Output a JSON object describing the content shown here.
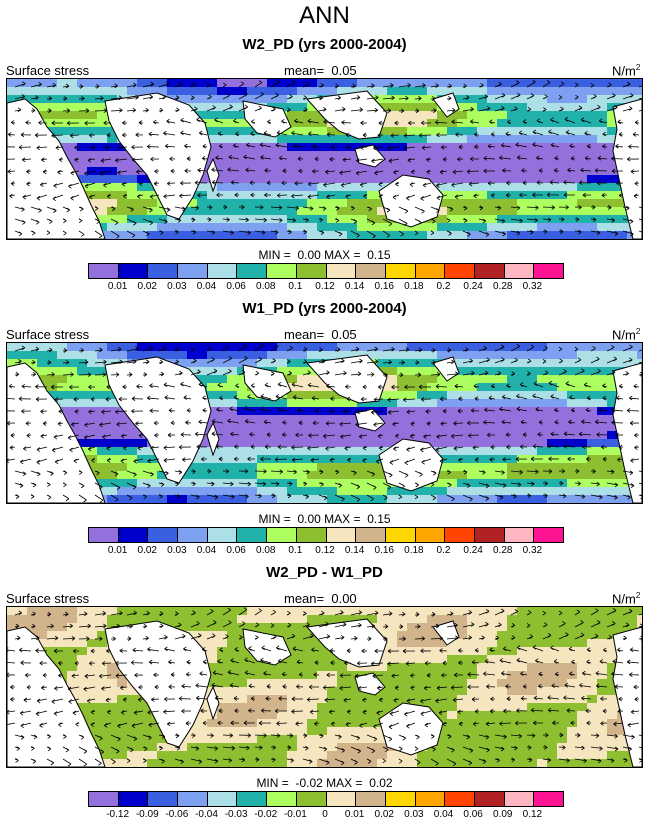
{
  "title": "ANN",
  "colors": {
    "bins": [
      "#9370DB",
      "#0000CD",
      "#3A5FE0",
      "#7EA0F0",
      "#ADE0E6",
      "#20B2AA",
      "#ADFF5F",
      "#8DBF30",
      "#F5E6C0",
      "#D2B48C",
      "#FFD700",
      "#FFA500",
      "#FF4500",
      "#B22222",
      "#FFB6C1",
      "#FF1493"
    ],
    "land": "#ffffff",
    "coast": "#000000"
  },
  "chart_data": [
    {
      "type": "heatmap",
      "title": "W2_PD (yrs 2000-2004)",
      "left_label": "Surface stress",
      "mean_label": "mean=",
      "mean_value": "0.05",
      "units_base": "N/m",
      "units_exp": "2",
      "min_label": "MIN =",
      "min_value": "0.00",
      "max_label": "MAX =",
      "max_value": "0.15",
      "colorbar_ticks": [
        "0.01",
        "0.02",
        "0.03",
        "0.04",
        "0.06",
        "0.08",
        "0.1",
        "0.12",
        "0.14",
        "0.16",
        "0.18",
        "0.2",
        "0.24",
        "0.28",
        "0.32"
      ]
    },
    {
      "type": "heatmap",
      "title": "W1_PD (yrs 2000-2004)",
      "left_label": "Surface stress",
      "mean_label": "mean=",
      "mean_value": "0.05",
      "units_base": "N/m",
      "units_exp": "2",
      "min_label": "MIN =",
      "min_value": "0.00",
      "max_label": "MAX =",
      "max_value": "0.15",
      "colorbar_ticks": [
        "0.01",
        "0.02",
        "0.03",
        "0.04",
        "0.06",
        "0.08",
        "0.1",
        "0.12",
        "0.14",
        "0.16",
        "0.18",
        "0.2",
        "0.24",
        "0.28",
        "0.32"
      ]
    },
    {
      "type": "heatmap",
      "title": "W2_PD - W1_PD",
      "left_label": "Surface stress",
      "mean_label": "mean=",
      "mean_value": "0.00",
      "units_base": "N/m",
      "units_exp": "2",
      "min_label": "MIN =",
      "min_value": "-0.02",
      "max_label": "MAX =",
      "max_value": "0.02",
      "colorbar_ticks": [
        "-0.12",
        "-0.09",
        "-0.06",
        "-0.04",
        "-0.03",
        "-0.02",
        "-0.01",
        "0",
        "0.01",
        "0.02",
        "0.03",
        "0.04",
        "0.06",
        "0.09",
        "0.12"
      ]
    }
  ]
}
